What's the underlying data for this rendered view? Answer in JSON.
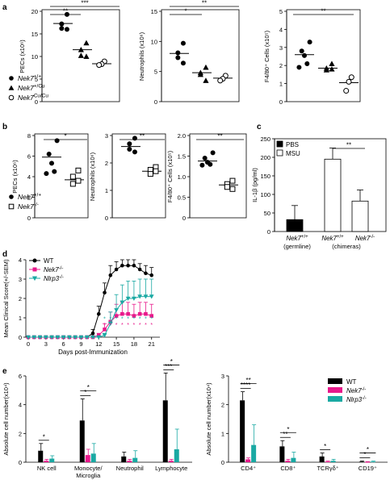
{
  "panel_labels": {
    "a": "a",
    "b": "b",
    "c": "c",
    "d": "d",
    "e": "e"
  },
  "colors": {
    "black": "#000000",
    "magenta": "#e8198b",
    "teal": "#1aa9a3"
  },
  "chart_data": [
    {
      "id": "a1",
      "type": "scatter",
      "ylabel": "PECs (x10⁶)",
      "ylim": [
        0,
        20
      ],
      "yticks": [
        0,
        5,
        10,
        15,
        20
      ],
      "groups": [
        {
          "name": "Nek7+/+",
          "marker": "circle",
          "mean": 17.3,
          "values": [
            19.3,
            17.2,
            16.2,
            16.0
          ]
        },
        {
          "name": "Nek7+/Cu",
          "marker": "triangle",
          "mean": 11.5,
          "values": [
            13.0,
            11.5,
            10.2,
            10.0
          ]
        },
        {
          "name": "Nek7Cu/Cu",
          "marker": "open-circle",
          "mean": 8.4,
          "values": [
            8.9,
            8.3,
            8.1
          ]
        }
      ],
      "significance": [
        {
          "from": 0,
          "to": 1,
          "label": "**"
        },
        {
          "from": 0,
          "to": 2,
          "label": "***"
        }
      ]
    },
    {
      "id": "a2",
      "type": "scatter",
      "ylabel": "Neutrophils (x10⁶)",
      "ylim": [
        0,
        15
      ],
      "yticks": [
        0,
        5,
        10,
        15
      ],
      "groups": [
        {
          "name": "Nek7+/+",
          "marker": "circle",
          "mean": 8.0,
          "values": [
            9.7,
            8.1,
            7.3,
            6.4
          ]
        },
        {
          "name": "Nek7+/Cu",
          "marker": "triangle",
          "mean": 4.8,
          "values": [
            5.7,
            4.8,
            4.5,
            3.5
          ]
        },
        {
          "name": "Nek7Cu/Cu",
          "marker": "open-circle",
          "mean": 3.9,
          "values": [
            4.3,
            3.8,
            3.5
          ]
        }
      ],
      "significance": [
        {
          "from": 0,
          "to": 1,
          "label": "*"
        },
        {
          "from": 0,
          "to": 2,
          "label": "**"
        }
      ]
    },
    {
      "id": "a3",
      "type": "scatter",
      "ylabel": "F4/80⁺ Cells (x10⁵)",
      "ylim": [
        0,
        5
      ],
      "yticks": [
        0,
        1,
        2,
        3,
        4,
        5
      ],
      "groups": [
        {
          "name": "Nek7+/+",
          "marker": "circle",
          "mean": 2.6,
          "values": [
            3.3,
            2.8,
            2.55,
            2.1,
            1.9
          ]
        },
        {
          "name": "Nek7+/Cu",
          "marker": "triangle",
          "mean": 1.85,
          "values": [
            2.1,
            1.85,
            1.75,
            1.8
          ]
        },
        {
          "name": "Nek7Cu/Cu",
          "marker": "open-circle",
          "mean": 1.05,
          "values": [
            1.35,
            1.1,
            0.6
          ]
        }
      ],
      "significance": [
        {
          "from": 0,
          "to": 2,
          "label": "**"
        }
      ]
    },
    {
      "id": "b1",
      "type": "scatter",
      "ylabel": "PECs (x10⁶)",
      "ylim": [
        0,
        8
      ],
      "yticks": [
        0,
        2,
        4,
        6,
        8
      ],
      "groups": [
        {
          "name": "Nek7+/+",
          "marker": "circle",
          "mean": 5.9,
          "values": [
            7.5,
            6.2,
            5.3,
            4.5,
            4.3
          ]
        },
        {
          "name": "Nek7-/-",
          "marker": "open-square",
          "mean": 3.7,
          "values": [
            4.6,
            4.0,
            3.3,
            3.6
          ]
        }
      ],
      "significance": [
        {
          "from": 0,
          "to": 1,
          "label": "*"
        }
      ]
    },
    {
      "id": "b2",
      "type": "scatter",
      "ylabel": "Neutrophils (x10⁶)",
      "ylim": [
        0,
        3
      ],
      "yticks": [
        0,
        1,
        2,
        3
      ],
      "groups": [
        {
          "name": "Nek7+/+",
          "marker": "circle",
          "mean": 2.6,
          "values": [
            2.9,
            2.7,
            2.5,
            2.4
          ]
        },
        {
          "name": "Nek7-/-",
          "marker": "open-square",
          "mean": 1.7,
          "values": [
            1.85,
            1.75,
            1.6,
            1.7
          ]
        }
      ],
      "significance": [
        {
          "from": 0,
          "to": 1,
          "label": "**"
        }
      ]
    },
    {
      "id": "b3",
      "type": "scatter",
      "ylabel": "F4/80⁺ Cells (x10⁵)",
      "ylim": [
        0,
        2
      ],
      "yticks": [
        0,
        0.5,
        1.0,
        1.5,
        2.0
      ],
      "ytick_labels": [
        "0",
        "0.5",
        "1.0",
        "1.5",
        "2.0"
      ],
      "groups": [
        {
          "name": "Nek7+/+",
          "marker": "circle",
          "mean": 1.38,
          "values": [
            1.58,
            1.45,
            1.35,
            1.3,
            1.28
          ]
        },
        {
          "name": "Nek7-/-",
          "marker": "open-square",
          "mean": 0.8,
          "values": [
            0.9,
            0.82,
            0.75,
            0.7
          ]
        }
      ],
      "significance": [
        {
          "from": 0,
          "to": 1,
          "label": "**"
        }
      ]
    },
    {
      "id": "c",
      "type": "bar",
      "ylabel": "IL-1β (pg/ml)",
      "ylim": [
        0,
        250
      ],
      "yticks": [
        0,
        50,
        100,
        150,
        200,
        250
      ],
      "legend": [
        "PBS",
        "MSU"
      ],
      "bars": [
        {
          "name": "PBS",
          "value": 32,
          "error": 38,
          "fill": "#000000"
        },
        {
          "name": "MSU",
          "value": 195,
          "error": 30,
          "fill": "#ffffff"
        },
        {
          "name": "MSU",
          "value": 82,
          "error": 30,
          "fill": "#ffffff"
        }
      ],
      "group_labels": [
        {
          "genotype": "Nek7+/+",
          "note": "(germline)"
        },
        {
          "genotype": "Nek7+/+",
          "note": ""
        },
        {
          "genotype": "Nek7-/-",
          "note": ""
        }
      ],
      "chimera_note": "(chimeras)",
      "significance": [
        {
          "from": 1,
          "to": 2,
          "label": "**"
        }
      ]
    },
    {
      "id": "d",
      "type": "line",
      "xlabel": "Days post-Immunization",
      "ylabel": "Mean Clinical Score(+/-SEM)",
      "xlim": [
        0,
        22
      ],
      "ylim": [
        0,
        4
      ],
      "xticks": [
        0,
        3,
        6,
        9,
        12,
        15,
        18,
        21
      ],
      "yticks": [
        0,
        1,
        2,
        3,
        4
      ],
      "x": [
        0,
        1,
        2,
        3,
        4,
        5,
        6,
        7,
        8,
        9,
        10,
        11,
        12,
        13,
        14,
        15,
        16,
        17,
        18,
        19,
        20,
        21
      ],
      "series": [
        {
          "name": "WT",
          "marker": "circle",
          "color": "#000000",
          "values": [
            0,
            0,
            0,
            0,
            0,
            0,
            0,
            0,
            0,
            0,
            0,
            0.2,
            1.2,
            2.3,
            3.2,
            3.5,
            3.7,
            3.7,
            3.7,
            3.5,
            3.3,
            3.2
          ],
          "errors": [
            0,
            0,
            0,
            0,
            0,
            0,
            0,
            0,
            0,
            0,
            0,
            0.2,
            0.4,
            0.5,
            0.5,
            0.4,
            0.3,
            0.3,
            0.3,
            0.3,
            0.4,
            0.4
          ]
        },
        {
          "name": "Nek7-/-",
          "marker": "square",
          "color": "#e8198b",
          "values": [
            0,
            0,
            0,
            0,
            0,
            0,
            0,
            0,
            0,
            0,
            0,
            0,
            0.1,
            0.4,
            0.8,
            1.1,
            1.2,
            1.2,
            1.1,
            1.2,
            1.2,
            1.1
          ],
          "errors": [
            0,
            0,
            0,
            0,
            0,
            0,
            0,
            0,
            0,
            0,
            0,
            0,
            0.1,
            0.3,
            0.5,
            0.6,
            0.6,
            0.6,
            0.6,
            0.6,
            0.6,
            0.6
          ]
        },
        {
          "name": "Nlrp3-/-",
          "marker": "triangle-down",
          "color": "#1aa9a3",
          "values": [
            0,
            0,
            0,
            0,
            0,
            0,
            0,
            0,
            0,
            0,
            0,
            0,
            0,
            0.1,
            0.7,
            1.4,
            1.8,
            2.0,
            2.0,
            2.1,
            2.1,
            2.1
          ],
          "errors": [
            0,
            0,
            0,
            0,
            0,
            0,
            0,
            0,
            0,
            0,
            0,
            0,
            0,
            0.1,
            0.6,
            0.8,
            0.9,
            0.9,
            0.9,
            0.9,
            0.9,
            0.9
          ]
        }
      ],
      "star_days": [
        13,
        14,
        15,
        16,
        17,
        18,
        19,
        20,
        21
      ]
    },
    {
      "id": "e1",
      "type": "bar",
      "ylabel": "Absolute cell number(x10⁴)",
      "ylim": [
        0,
        6
      ],
      "yticks": [
        0,
        2,
        4,
        6
      ],
      "categories": [
        "NK cell",
        "Monocyte/\nMicroglia",
        "Neutrophil",
        "Lymphocyte"
      ],
      "series": [
        {
          "name": "WT",
          "color": "#000000",
          "values": [
            0.8,
            2.9,
            0.4,
            4.3
          ],
          "errors": [
            0.5,
            1.5,
            0.3,
            1.9
          ]
        },
        {
          "name": "Nek7-/-",
          "color": "#e8198b",
          "values": [
            0.1,
            0.5,
            0.1,
            0.1
          ],
          "errors": [
            0.1,
            0.4,
            0.1,
            0.1
          ]
        },
        {
          "name": "Nlrp3-/-",
          "color": "#1aa9a3",
          "values": [
            0.25,
            0.6,
            0.3,
            0.9
          ],
          "errors": [
            0.2,
            0.7,
            0.5,
            1.4
          ]
        }
      ],
      "significance": [
        {
          "cat": 0,
          "from": 0,
          "to": 1,
          "label": "*"
        },
        {
          "cat": 1,
          "from": 0,
          "to": 1,
          "label": "*"
        },
        {
          "cat": 1,
          "from": 0,
          "to": 2,
          "label": "*"
        },
        {
          "cat": 3,
          "from": 0,
          "to": 1,
          "label": "***"
        },
        {
          "cat": 3,
          "from": 0,
          "to": 2,
          "label": "*"
        }
      ]
    },
    {
      "id": "e2",
      "type": "bar",
      "ylabel": "Absolute cell number(x10⁴)",
      "ylim": [
        0,
        3
      ],
      "yticks": [
        0,
        1,
        2,
        3
      ],
      "categories": [
        "CD4⁺",
        "CD8⁺",
        "TCRγδ⁺",
        "CD19⁺"
      ],
      "series": [
        {
          "name": "WT",
          "color": "#000000",
          "values": [
            2.15,
            0.55,
            0.2,
            0.02
          ],
          "errors": [
            0.3,
            0.2,
            0.12,
            0.02
          ]
        },
        {
          "name": "Nek7-/-",
          "color": "#e8198b",
          "values": [
            0.1,
            0.05,
            0.02,
            0.01
          ],
          "errors": [
            0.05,
            0.05,
            0.02,
            0.01
          ]
        },
        {
          "name": "Nlrp3-/-",
          "color": "#1aa9a3",
          "values": [
            0.6,
            0.15,
            0.05,
            0.02
          ],
          "errors": [
            0.7,
            0.2,
            0.05,
            0.02
          ]
        }
      ],
      "significance": [
        {
          "cat": 0,
          "from": 0,
          "to": 1,
          "label": "****"
        },
        {
          "cat": 0,
          "from": 0,
          "to": 2,
          "label": "**"
        },
        {
          "cat": 1,
          "from": 0,
          "to": 1,
          "label": "**"
        },
        {
          "cat": 1,
          "from": 0,
          "to": 2,
          "label": "*"
        },
        {
          "cat": 2,
          "from": 0,
          "to": 1,
          "label": "*"
        },
        {
          "cat": 3,
          "from": 0,
          "to": 1,
          "label": "*"
        },
        {
          "cat": 3,
          "from": 0,
          "to": 2,
          "label": "*"
        }
      ],
      "legend": [
        "WT",
        "Nek7-/-",
        "Nlrp3-/-"
      ]
    }
  ],
  "legends": {
    "a": [
      {
        "marker": "circle",
        "gene": "Nek7",
        "sup": "+/+"
      },
      {
        "marker": "triangle",
        "gene": "Nek7",
        "sup": "+/Cu"
      },
      {
        "marker": "open-circle",
        "gene": "Nek7",
        "sup": "Cu/Cu"
      }
    ],
    "b": [
      {
        "marker": "circle",
        "gene": "Nek7",
        "sup": "+/+"
      },
      {
        "marker": "open-square",
        "gene": "Nek7",
        "sup": "-/-"
      }
    ],
    "c": [
      {
        "fill": "#000000",
        "label": "PBS"
      },
      {
        "fill": "#ffffff",
        "label": "MSU"
      }
    ],
    "d": [
      {
        "marker": "circle",
        "gene": "WT",
        "sup": "",
        "color": "#000000"
      },
      {
        "marker": "square",
        "gene": "Nek7",
        "sup": "-/-",
        "color": "#e8198b"
      },
      {
        "marker": "triangle-down",
        "gene": "Nlrp3",
        "sup": "-/-",
        "color": "#1aa9a3"
      }
    ],
    "e": [
      {
        "color": "#000000",
        "gene": "WT",
        "sup": ""
      },
      {
        "color": "#e8198b",
        "gene": "Nek7",
        "sup": "-/-"
      },
      {
        "color": "#1aa9a3",
        "gene": "Nlrp3",
        "sup": "-/-"
      }
    ]
  }
}
